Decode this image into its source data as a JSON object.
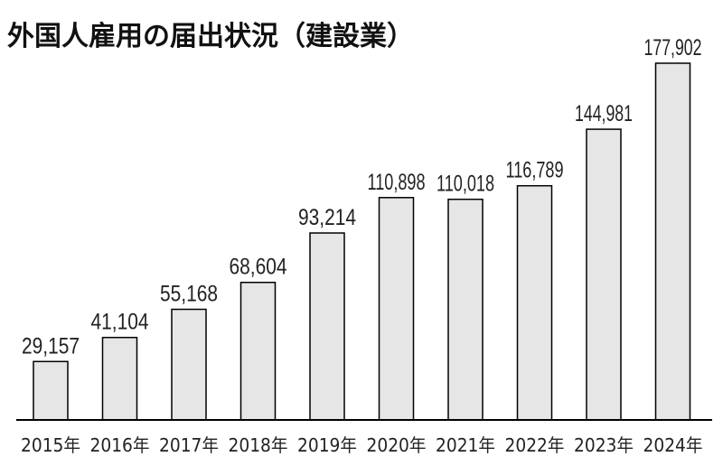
{
  "chart_data": {
    "type": "bar",
    "title": "外国人雇用の届出状況（建設業）",
    "categories": [
      "2015年",
      "2016年",
      "2017年",
      "2018年",
      "2019年",
      "2020年",
      "2021年",
      "2022年",
      "2023年",
      "2024年"
    ],
    "values": [
      29157,
      41104,
      55168,
      68604,
      93214,
      110898,
      110018,
      116789,
      144981,
      177902
    ],
    "value_labels": [
      "29,157",
      "41,104",
      "55,168",
      "68,604",
      "93,214",
      "110,898",
      "110,018",
      "116,789",
      "144,981",
      "177,902"
    ],
    "ylim": [
      0,
      177902
    ],
    "grid": false,
    "legend": "none",
    "colors": {
      "bar_fill": "#e6e6e6",
      "bar_stroke": "#000000",
      "axis": "#000000"
    }
  }
}
